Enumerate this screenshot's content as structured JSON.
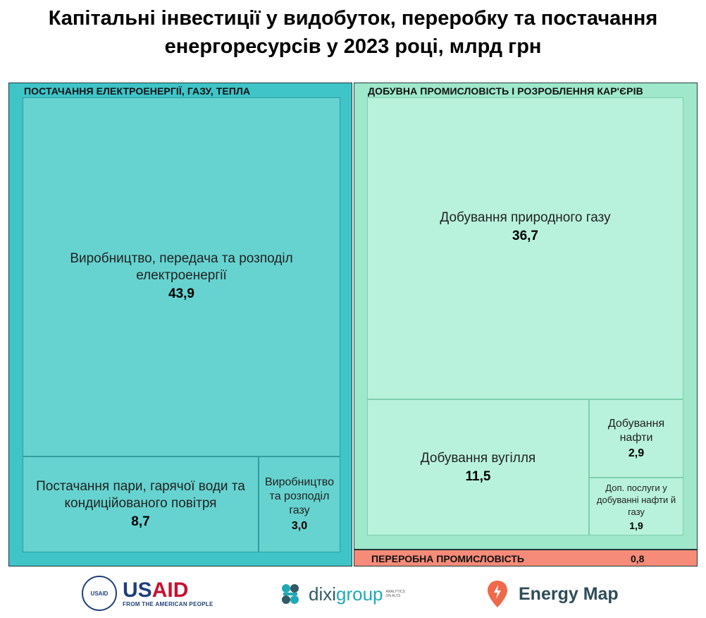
{
  "title_lines": [
    "Капітальні інвестиції у видобуток, переробку та постачання",
    "енергоресурсів у 2023 році, млрд грн"
  ],
  "colors": {
    "supply_group": "#3fc4c8",
    "supply_cell": "#66d3d0",
    "supply_border": "#2f9e9e",
    "mining_group": "#9fe8cb",
    "mining_cell": "#b8f2dc",
    "mining_border": "#7fcfae",
    "processing": "#f58b78"
  },
  "chart_data": {
    "type": "treemap",
    "title": "Капітальні інвестиції у видобуток, переробку та постачання енергоресурсів у 2023 році, млрд грн",
    "groups": [
      {
        "name": "ПОСТАЧАННЯ ЕЛЕКТРОЕНЕРГІЇ, ГАЗУ, ТЕПЛА",
        "items": [
          {
            "label": "Виробництво, передача та розподіл електроенергії",
            "value": 43.9,
            "value_text": "43,9"
          },
          {
            "label": "Постачання пари, гарячої води та кондиційованого повітря",
            "value": 8.7,
            "value_text": "8,7"
          },
          {
            "label": "Виробництво та розподіл газу",
            "value": 3.0,
            "value_text": "3,0"
          }
        ]
      },
      {
        "name": "ДОБУВНА ПРОМИСЛОВІСТЬ І РОЗРОБЛЕННЯ КАР'ЄРІВ",
        "items": [
          {
            "label": "Добування природного газу",
            "value": 36.7,
            "value_text": "36,7"
          },
          {
            "label": "Добування вугілля",
            "value": 11.5,
            "value_text": "11,5"
          },
          {
            "label": "Добування нафти",
            "value": 2.9,
            "value_text": "2,9"
          },
          {
            "label": "Доп. послуги у добуванні нафти й газу",
            "value": 1.9,
            "value_text": "1,9"
          }
        ]
      },
      {
        "name": "ПЕРЕРОБНА ПРОМИСЛОВІСТЬ",
        "value": 0.8,
        "value_text": "0,8"
      }
    ]
  },
  "logos": {
    "usaid": {
      "seal_text": "USAID",
      "word_u": "US",
      "word_aid": "AID",
      "tagline": "FROM THE AMERICAN PEOPLE"
    },
    "dixigroup": {
      "word_a": "dixi",
      "word_b": "group",
      "tagline": "ANALYTICS ON ALTS"
    },
    "energymap": {
      "word": "Energy Map"
    }
  }
}
